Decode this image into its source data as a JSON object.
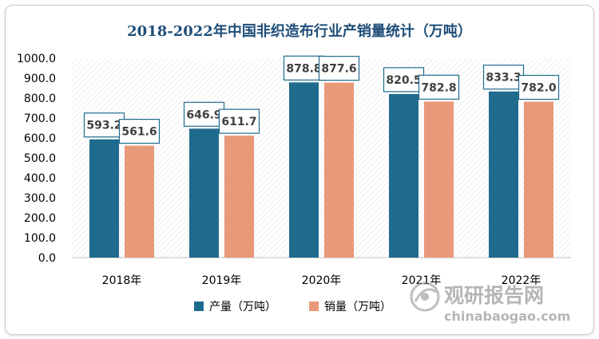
{
  "chart_data": {
    "type": "bar",
    "title": "2018-2022年中国非织造布行业产销量统计（万吨）",
    "categories": [
      "2018年",
      "2019年",
      "2020年",
      "2021年",
      "2022年"
    ],
    "series": [
      {
        "name": "产量（万吨）",
        "values": [
          593.2,
          646.9,
          878.8,
          820.5,
          833.3
        ],
        "color": "#1f6b8e"
      },
      {
        "name": "销量（万吨）",
        "values": [
          561.6,
          611.7,
          877.6,
          782.8,
          782.0
        ],
        "color": "#e8997a"
      }
    ],
    "ylim": [
      0,
      1000
    ],
    "yticks": [
      "0.0",
      "100.0",
      "200.0",
      "300.0",
      "400.0",
      "500.0",
      "600.0",
      "700.0",
      "800.0",
      "900.0",
      "1000.0"
    ],
    "xlabel": "",
    "ylabel": "",
    "legend_position": "bottom",
    "grid": false
  },
  "watermark": {
    "text": "观研报告网",
    "url": "chinabaogao.com"
  },
  "colors": {
    "title": "#1f4e79",
    "label_border": "#1f6b8e",
    "label_text": "#404040",
    "tick_text": "#000000",
    "axis": "#bfbfbf"
  }
}
